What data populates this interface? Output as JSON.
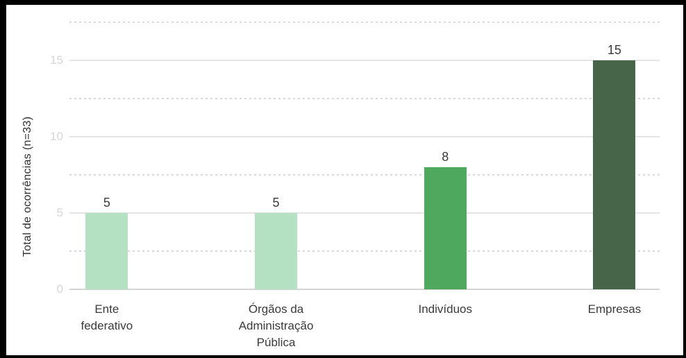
{
  "frame": {
    "border_color": "#000000",
    "background": "#ffffff"
  },
  "chart_data": {
    "type": "bar",
    "title": "",
    "xlabel": "",
    "ylabel": "Total de ocorrências (n=33)",
    "categories": [
      "Ente\nfederativo",
      "Órgãos da\nAdministração\nPública",
      "Indivíduos",
      "Empresas"
    ],
    "values": [
      5,
      5,
      8,
      15
    ],
    "data_labels": [
      "5",
      "5",
      "8",
      "15"
    ],
    "bar_colors": [
      "#b3e1c1",
      "#b3e1c1",
      "#4ea95f",
      "#476549"
    ],
    "ylim": [
      0,
      17.5
    ],
    "yticks": [
      0,
      5,
      10,
      15
    ],
    "minor_gridlines": [
      2.5,
      7.5,
      12.5,
      17.5
    ],
    "grid": "on",
    "legend": "none",
    "colors": {
      "major_gridline": "#e4e4e4",
      "zero_line": "#d4d4d4",
      "minor_gridline": "#d9d9d9",
      "tick_label": "#d6d6da",
      "data_label": "#3b3b3b",
      "axis_title": "#2f2f2f",
      "category_label": "#3a3a3a"
    }
  }
}
